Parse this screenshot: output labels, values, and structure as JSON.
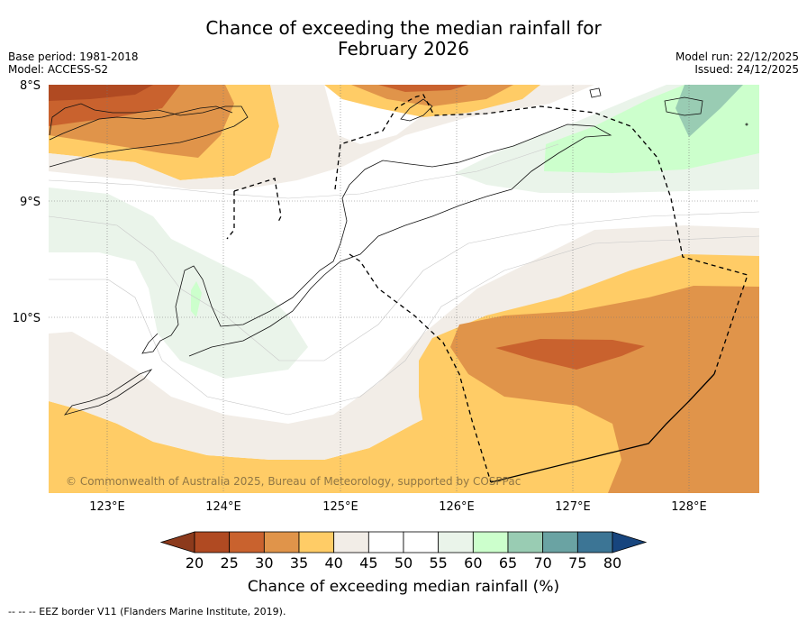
{
  "title": {
    "line1": "Chance of exceeding the median rainfall for",
    "line2": "February 2026"
  },
  "meta": {
    "base_period": "Base period: 1981-2018",
    "model": "Model: ACCESS-S2",
    "model_run": "Model run: 22/12/2025",
    "issued": "Issued: 24/12/2025"
  },
  "axes": {
    "lat_labels": [
      "8°S",
      "9°S",
      "10°S"
    ],
    "lon_labels": [
      "123°E",
      "124°E",
      "125°E",
      "126°E",
      "127°E",
      "128°E"
    ]
  },
  "copyright": "© Commonwealth of Australia 2025, Bureau of Meteorology, supported by COSPPac",
  "colorbar": {
    "title": "Chance of exceeding median rainfall (%)",
    "ticks": [
      "20",
      "25",
      "30",
      "35",
      "40",
      "45",
      "50",
      "55",
      "60",
      "65",
      "70",
      "75",
      "80"
    ],
    "under_color": "#8c3a1c",
    "over_color": "#17457e",
    "colors": [
      "#b04a22",
      "#c9622e",
      "#e0944a",
      "#ffcc66",
      "#f2ede7",
      "#ffffff",
      "#ffffff",
      "#eaf4ea",
      "#ccffcc",
      "#99ccb3",
      "#6aa3a3",
      "#3c7595"
    ]
  },
  "footer": "--  --  -- EEZ border V11 (Flanders Marine Institute, 2019)."
}
